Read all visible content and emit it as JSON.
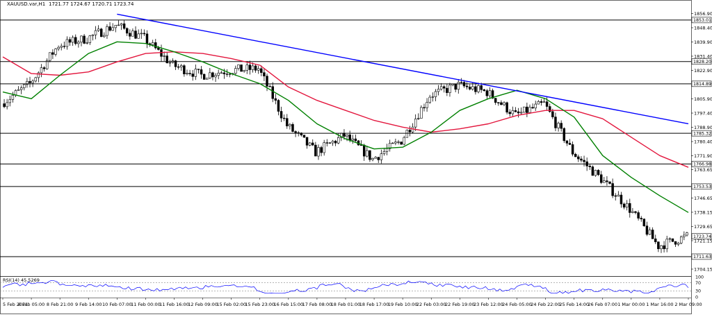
{
  "header": {
    "symbol": "XAUUSD.var,H1",
    "ohlc": "1721.77 1724.67 1720.71 1723.74"
  },
  "rsi": {
    "label": "RSI(14) 45.5269",
    "scale": [
      "100",
      "70",
      "30",
      "0"
    ]
  },
  "colors": {
    "candle": "#000000",
    "ma_fast": "#008000",
    "ma_slow": "#e3173e",
    "trendline": "#0000ff",
    "level_line": "#000000",
    "rsi_line": "#0000ff",
    "rsi_levels": "#888888"
  },
  "chart_data": {
    "type": "candlestick",
    "symbol": "XAUUSD.var",
    "timeframe": "H1",
    "y_axis_ticks": [
      "1856.90",
      "1848.40",
      "1839.90",
      "1831.40",
      "1822.90",
      "1805.90",
      "1797.40",
      "1788.90",
      "1780.40",
      "1771.90",
      "1763.65",
      "1746.65",
      "1738.15",
      "1729.65",
      "1721.15",
      "1704.15"
    ],
    "x_axis_labels": [
      "5 Feb 2021",
      "8 Feb 05:00",
      "8 Feb 21:00",
      "9 Feb 14:00",
      "10 Feb 07:00",
      "11 Feb 00:00",
      "11 Feb 16:00",
      "12 Feb 09:00",
      "15 Feb 02:00",
      "15 Feb 23:00",
      "16 Feb 15:00",
      "17 Feb 08:00",
      "18 Feb 01:00",
      "18 Feb 17:00",
      "19 Feb 10:00",
      "22 Feb 03:00",
      "22 Feb 19:00",
      "23 Feb 12:00",
      "24 Feb 05:00",
      "24 Feb 22:00",
      "25 Feb 14:00",
      "26 Feb 07:00",
      "1 Mar 00:00",
      "1 Mar 16:00",
      "2 Mar 09:00"
    ],
    "ylim": [
      1700.0,
      1860.0
    ],
    "horizontal_levels": [
      {
        "label": "1853.01",
        "value": 1853.01
      },
      {
        "label": "1828.20",
        "value": 1828.2
      },
      {
        "label": "1814.89",
        "value": 1814.89
      },
      {
        "label": "1785.32",
        "value": 1785.32
      },
      {
        "label": "1766.98",
        "value": 1766.98
      },
      {
        "label": "1753.53",
        "value": 1753.53
      },
      {
        "label": "1711.63",
        "value": 1711.63
      }
    ],
    "current_price": {
      "label": "1723.74",
      "value": 1723.74
    },
    "trendline": {
      "from": {
        "x": "10 Feb 07:00",
        "y": 1856.5
      },
      "to": {
        "x": "2 Mar 09:00",
        "y": 1791.0
      }
    },
    "close_path": [
      [
        "5 Feb 2021",
        1803
      ],
      [
        "8 Feb 05:00",
        1815
      ],
      [
        "8 Feb 21:00",
        1838
      ],
      [
        "9 Feb 14:00",
        1842
      ],
      [
        "10 Feb 07:00",
        1850
      ],
      [
        "11 Feb 00:00",
        1842
      ],
      [
        "11 Feb 16:00",
        1826
      ],
      [
        "12 Feb 09:00",
        1820
      ],
      [
        "15 Feb 02:00",
        1823
      ],
      [
        "15 Feb 23:00",
        1824
      ],
      [
        "16 Feb 15:00",
        1790
      ],
      [
        "17 Feb 08:00",
        1774
      ],
      [
        "18 Feb 01:00",
        1784
      ],
      [
        "18 Feb 17:00",
        1770
      ],
      [
        "19 Feb 10:00",
        1781
      ],
      [
        "22 Feb 03:00",
        1808
      ],
      [
        "22 Feb 19:00",
        1814
      ],
      [
        "23 Feb 12:00",
        1810
      ],
      [
        "24 Feb 05:00",
        1796
      ],
      [
        "24 Feb 22:00",
        1803
      ],
      [
        "25 Feb 14:00",
        1774
      ],
      [
        "26 Feb 07:00",
        1758
      ],
      [
        "1 Mar 00:00",
        1740
      ],
      [
        "1 Mar 16:00",
        1718
      ],
      [
        "2 Mar 09:00",
        1723.74
      ]
    ],
    "ma_fast_path": [
      [
        "5 Feb 2021",
        1810
      ],
      [
        "8 Feb 05:00",
        1806
      ],
      [
        "8 Feb 21:00",
        1820
      ],
      [
        "9 Feb 14:00",
        1833
      ],
      [
        "10 Feb 07:00",
        1840
      ],
      [
        "11 Feb 00:00",
        1839
      ],
      [
        "11 Feb 16:00",
        1834
      ],
      [
        "12 Feb 09:00",
        1828
      ],
      [
        "15 Feb 02:00",
        1821
      ],
      [
        "15 Feb 23:00",
        1815
      ],
      [
        "16 Feb 15:00",
        1805
      ],
      [
        "17 Feb 08:00",
        1791
      ],
      [
        "18 Feb 01:00",
        1782
      ],
      [
        "18 Feb 17:00",
        1776
      ],
      [
        "19 Feb 10:00",
        1777
      ],
      [
        "22 Feb 03:00",
        1786
      ],
      [
        "22 Feb 19:00",
        1799
      ],
      [
        "23 Feb 12:00",
        1806
      ],
      [
        "24 Feb 05:00",
        1811
      ],
      [
        "24 Feb 22:00",
        1806
      ],
      [
        "25 Feb 14:00",
        1795
      ],
      [
        "26 Feb 07:00",
        1772
      ],
      [
        "1 Mar 00:00",
        1759
      ],
      [
        "1 Mar 16:00",
        1748
      ],
      [
        "2 Mar 09:00",
        1738
      ]
    ],
    "ma_slow_path": [
      [
        "5 Feb 2021",
        1831
      ],
      [
        "8 Feb 05:00",
        1821
      ],
      [
        "8 Feb 21:00",
        1820
      ],
      [
        "9 Feb 14:00",
        1822
      ],
      [
        "10 Feb 07:00",
        1828
      ],
      [
        "11 Feb 00:00",
        1833
      ],
      [
        "11 Feb 16:00",
        1834
      ],
      [
        "12 Feb 09:00",
        1833
      ],
      [
        "15 Feb 02:00",
        1830
      ],
      [
        "15 Feb 23:00",
        1826
      ],
      [
        "16 Feb 15:00",
        1813
      ],
      [
        "17 Feb 08:00",
        1805
      ],
      [
        "18 Feb 01:00",
        1799
      ],
      [
        "18 Feb 17:00",
        1793
      ],
      [
        "19 Feb 10:00",
        1789
      ],
      [
        "22 Feb 03:00",
        1786
      ],
      [
        "22 Feb 19:00",
        1788
      ],
      [
        "23 Feb 12:00",
        1791
      ],
      [
        "24 Feb 05:00",
        1796
      ],
      [
        "24 Feb 22:00",
        1799
      ],
      [
        "25 Feb 14:00",
        1799
      ],
      [
        "26 Feb 07:00",
        1794
      ],
      [
        "1 Mar 00:00",
        1783
      ],
      [
        "1 Mar 16:00",
        1772
      ],
      [
        "2 Mar 09:00",
        1765
      ]
    ],
    "rsi_levels": [
      70,
      30
    ],
    "rsi_value": 45.5269
  }
}
